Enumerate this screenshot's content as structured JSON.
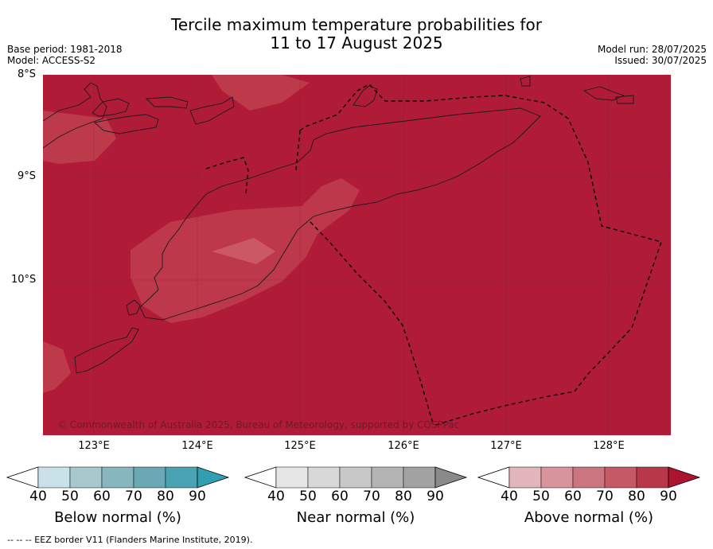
{
  "title_line1": "Tercile maximum temperature probabilities for",
  "title_line2": "11 to 17 August 2025",
  "base_period": "Base period: 1981-2018",
  "model": "Model: ACCESS-S2",
  "model_run": "Model run: 28/07/2025",
  "issued": "Issued: 30/07/2025",
  "lat_labels": [
    "8°S",
    "9°S",
    "10°S"
  ],
  "lon_labels": [
    "123°E",
    "124°E",
    "125°E",
    "126°E",
    "127°E",
    "128°E"
  ],
  "copyright": "© Commonwealth of Australia 2025, Bureau of Meteorology, supported by COSPPac",
  "colors": {
    "above_dominant": "#b01c38",
    "above_lighter": "#c0404f",
    "coast": "#1a1a1a"
  },
  "colorbars": [
    {
      "label": "Below normal (%)",
      "ticks": [
        "40",
        "50",
        "60",
        "70",
        "80",
        "90"
      ],
      "colors": [
        "#ffffff",
        "#c8e2e8",
        "#a7c8cc",
        "#88b6bf",
        "#6aa8b5",
        "#4aa3b3",
        "#2f9fb1"
      ]
    },
    {
      "label": "Near normal (%)",
      "ticks": [
        "40",
        "50",
        "60",
        "70",
        "80",
        "90"
      ],
      "colors": [
        "#ffffff",
        "#e6e6e6",
        "#d8d8d8",
        "#c8c8c8",
        "#b4b4b4",
        "#a2a2a2",
        "#8a8a8a"
      ]
    },
    {
      "label": "Above normal (%)",
      "ticks": [
        "40",
        "50",
        "60",
        "70",
        "80",
        "90"
      ],
      "colors": [
        "#ffffff",
        "#e3b6bd",
        "#d7949c",
        "#cb7580",
        "#c55965",
        "#b8384a",
        "#ab1530"
      ]
    }
  ],
  "footnote": "--  --  -- EEZ border V11 (Flanders Marine Institute, 2019)."
}
